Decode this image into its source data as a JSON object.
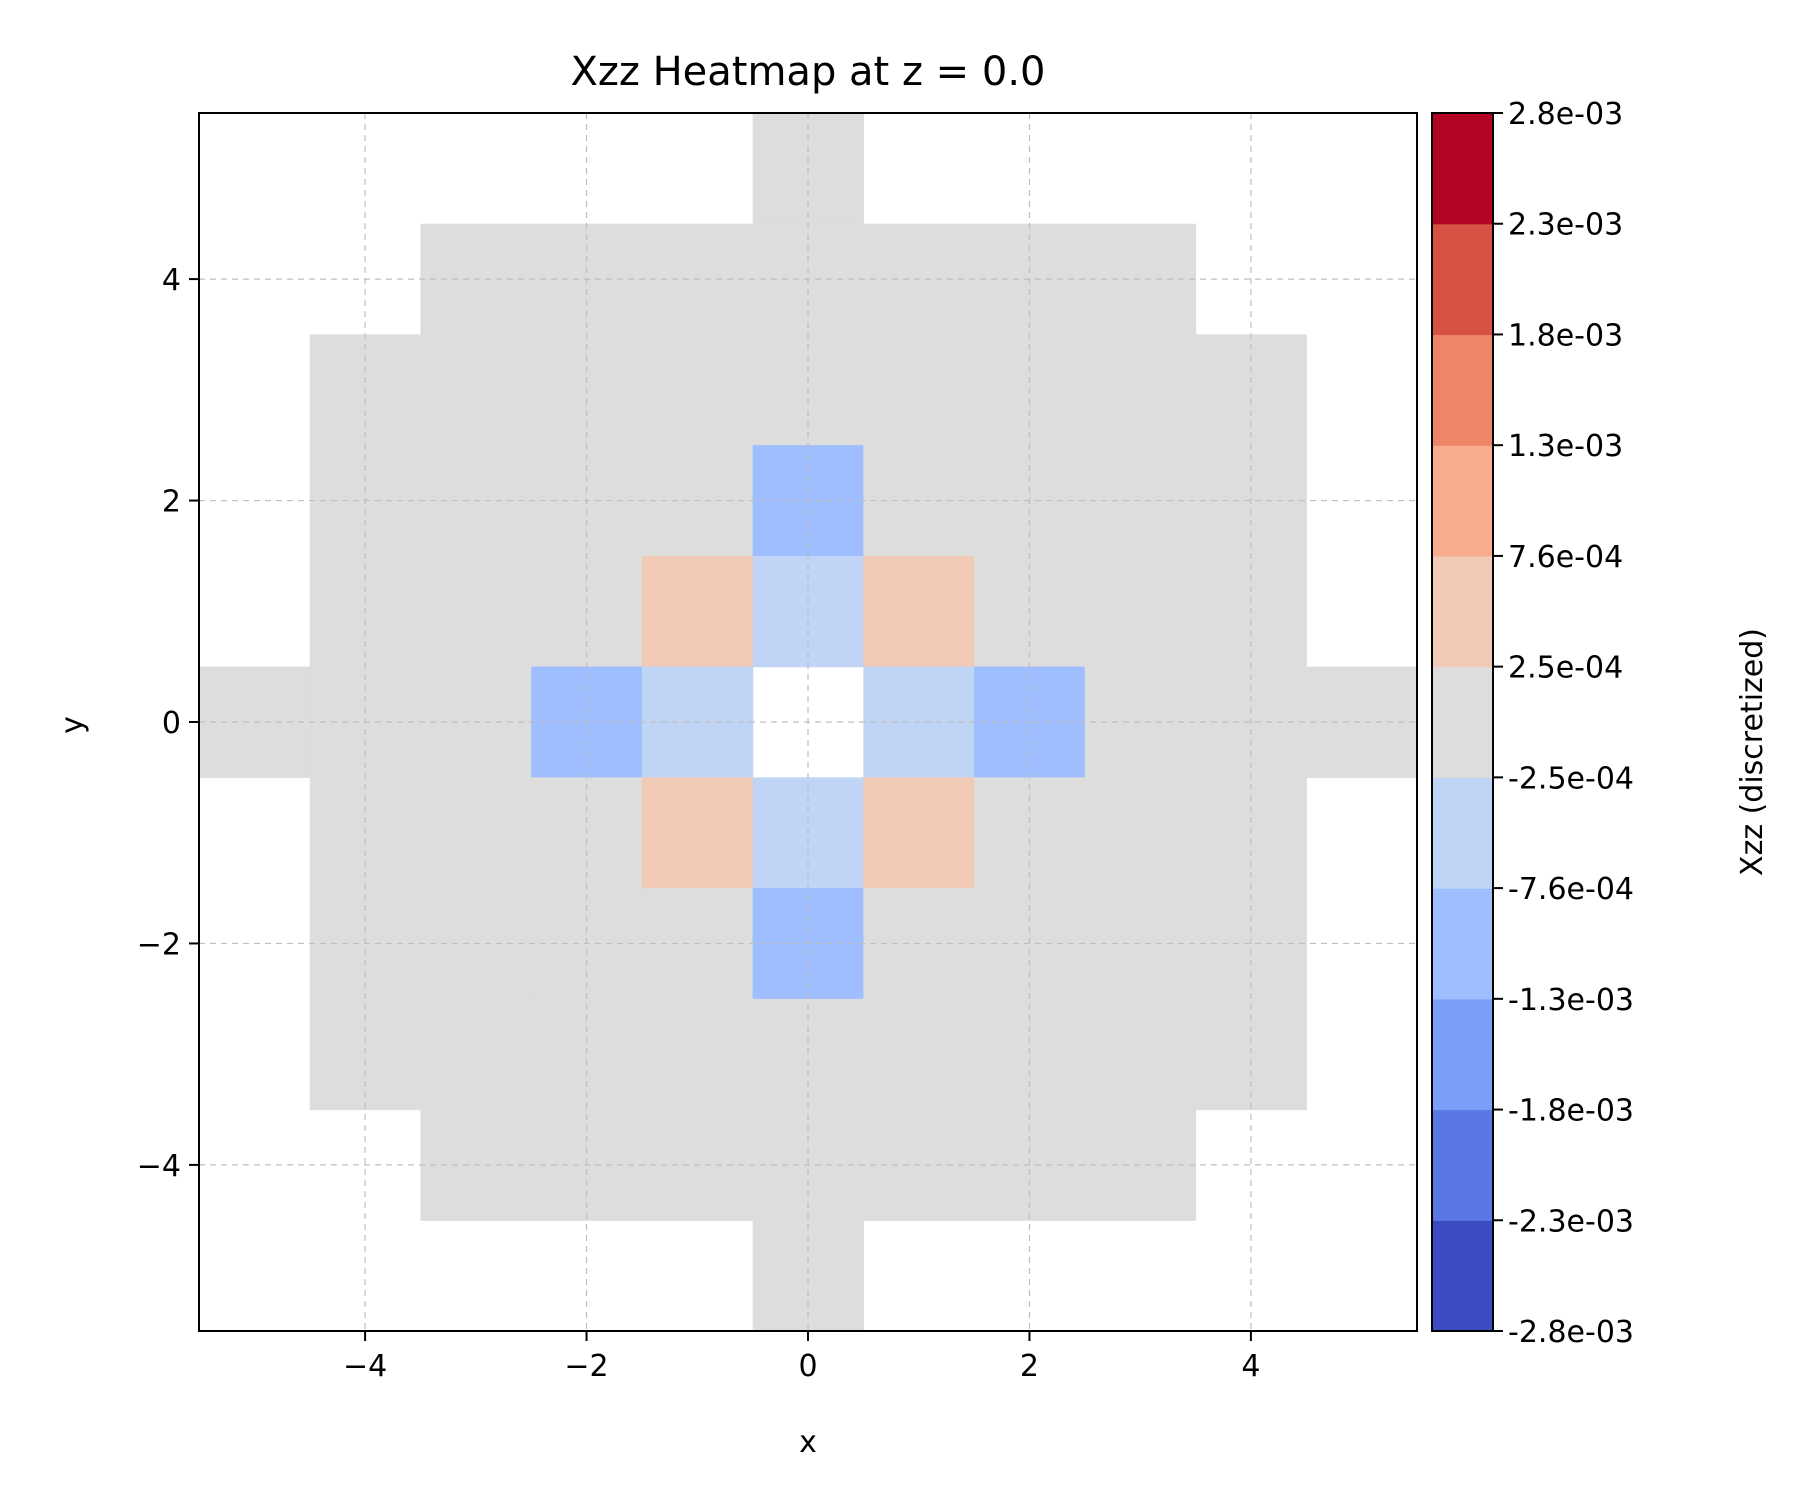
{
  "chart_data": {
    "type": "heatmap",
    "title": "Xzz Heatmap at z = 0.0",
    "xlabel": "x",
    "ylabel": "y",
    "xlim": [
      -5.5,
      5.5
    ],
    "ylim": [
      -5.5,
      5.5
    ],
    "x_ticks": [
      -4,
      -2,
      0,
      2,
      4
    ],
    "y_ticks": [
      -4,
      -2,
      0,
      2,
      4
    ],
    "x_tick_labels": [
      "−4",
      "−2",
      "0",
      "2",
      "4"
    ],
    "y_tick_labels": [
      "−4",
      "−2",
      "0",
      "2",
      "4"
    ],
    "grid": true,
    "grid_style": "dashed",
    "x": [
      -5,
      -4,
      -3,
      -2,
      -1,
      0,
      1,
      2,
      3,
      4,
      5
    ],
    "y": [
      5,
      4,
      3,
      2,
      1,
      0,
      -1,
      -2,
      -3,
      -4,
      -5
    ],
    "z_bins": [
      [
        null,
        null,
        null,
        null,
        null,
        5,
        null,
        null,
        null,
        null,
        null
      ],
      [
        null,
        null,
        5,
        5,
        5,
        5,
        5,
        5,
        5,
        null,
        null
      ],
      [
        null,
        5,
        5,
        5,
        5,
        5,
        5,
        5,
        5,
        5,
        null
      ],
      [
        null,
        5,
        5,
        5,
        5,
        3,
        5,
        5,
        5,
        5,
        null
      ],
      [
        null,
        5,
        5,
        5,
        6,
        4,
        6,
        5,
        5,
        5,
        null
      ],
      [
        5,
        5,
        5,
        3,
        4,
        null,
        4,
        3,
        5,
        5,
        5
      ],
      [
        null,
        5,
        5,
        5,
        6,
        4,
        6,
        5,
        5,
        5,
        null
      ],
      [
        null,
        5,
        5,
        5,
        5,
        3,
        5,
        5,
        5,
        5,
        null
      ],
      [
        null,
        5,
        5,
        5,
        5,
        5,
        5,
        5,
        5,
        5,
        null
      ],
      [
        null,
        null,
        5,
        5,
        5,
        5,
        5,
        5,
        5,
        null,
        null
      ],
      [
        null,
        null,
        null,
        null,
        null,
        5,
        null,
        null,
        null,
        null,
        null
      ]
    ],
    "colorbar": {
      "label": "Xzz (discretized)",
      "colormap": "coolwarm",
      "boundaries": [
        -0.0028,
        -0.0023,
        -0.0018,
        -0.0013,
        -0.00076,
        -0.00025,
        0.00025,
        0.00076,
        0.0013,
        0.0018,
        0.0023,
        0.0028
      ],
      "tick_labels": [
        "-2.8e-03",
        "-2.3e-03",
        "-1.8e-03",
        "-1.3e-03",
        "-7.6e-04",
        "-2.5e-04",
        "2.5e-04",
        "7.6e-04",
        "1.3e-03",
        "1.8e-03",
        "2.3e-03",
        "2.8e-03"
      ],
      "colors": [
        "#3b4cc0",
        "#5a78e4",
        "#7b9ff9",
        "#9ebeff",
        "#c0d4f5",
        "#dddddd",
        "#f2cbb7",
        "#f7ac8e",
        "#ee8468",
        "#d65244",
        "#b40426"
      ]
    }
  }
}
